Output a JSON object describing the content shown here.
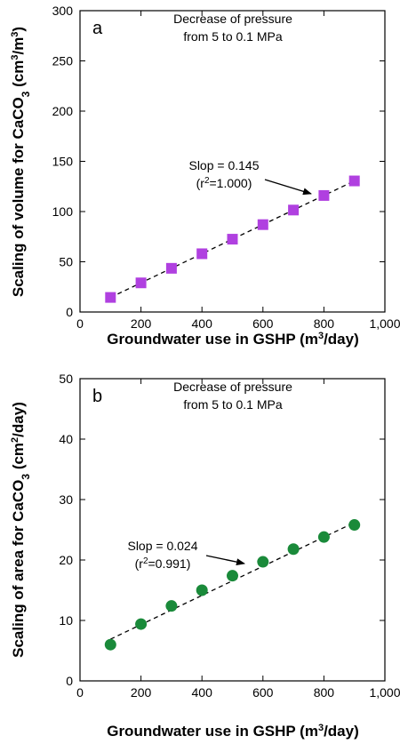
{
  "chart_data": [
    {
      "type": "scatter",
      "panel_label": "a",
      "note_line1": "Decrease of pressure",
      "note_line2": "from 5 to 0.1 MPa",
      "ylabel_main": "Scaling of volume for CaCO",
      "ylabel_sub": "3",
      "ylabel_unit_open": " (cm",
      "ylabel_sup1": "3",
      "ylabel_mid": "/m",
      "ylabel_sup2": "3",
      "ylabel_close": ")",
      "xlabel_main": "Groundwater use in GSHP (m",
      "xlabel_sup": "3",
      "xlabel_close": "/day)",
      "xlim": [
        0,
        1000
      ],
      "ylim": [
        0,
        300
      ],
      "xticks": [
        0,
        200,
        400,
        600,
        800,
        1000
      ],
      "xtick_labels": [
        "0",
        "200",
        "400",
        "600",
        "800",
        "1,000"
      ],
      "yticks": [
        0,
        50,
        100,
        150,
        200,
        250,
        300
      ],
      "ytick_labels": [
        "0",
        "50",
        "100",
        "150",
        "200",
        "250",
        "300"
      ],
      "marker": "square",
      "color": "#b040e0",
      "x": [
        100,
        200,
        300,
        400,
        500,
        600,
        700,
        800,
        900
      ],
      "y": [
        14.5,
        29,
        43.5,
        58,
        72.5,
        87,
        101.5,
        116,
        130.5
      ],
      "fit": {
        "x": [
          100,
          900
        ],
        "y": [
          14.5,
          130.5
        ]
      },
      "annotation": {
        "line1": "Slop = 0.145",
        "line2_open": "(r",
        "line2_sup": "2",
        "line2_close": "=1.000)"
      }
    },
    {
      "type": "scatter",
      "panel_label": "b",
      "note_line1": "Decrease of pressure",
      "note_line2": "from 5 to 0.1 MPa",
      "ylabel_main": "Scaling of area for CaCO",
      "ylabel_sub": "3",
      "ylabel_unit_open": " (cm",
      "ylabel_sup1": "2",
      "ylabel_close": "/day)",
      "xlabel_main": "Groundwater use in GSHP (m",
      "xlabel_sup": "3",
      "xlabel_close": "/day)",
      "xlim": [
        0,
        1000
      ],
      "ylim": [
        0,
        50
      ],
      "xticks": [
        0,
        200,
        400,
        600,
        800,
        1000
      ],
      "xtick_labels": [
        "0",
        "200",
        "400",
        "600",
        "800",
        "1,000"
      ],
      "yticks": [
        0,
        10,
        20,
        30,
        40,
        50
      ],
      "ytick_labels": [
        "0",
        "10",
        "20",
        "30",
        "40",
        "50"
      ],
      "marker": "circle",
      "color": "#1a8a3a",
      "x": [
        100,
        200,
        300,
        400,
        500,
        600,
        700,
        800,
        900
      ],
      "y": [
        6.0,
        9.4,
        12.4,
        15.0,
        17.4,
        19.7,
        21.8,
        23.8,
        25.8
      ],
      "fit": {
        "x": [
          100,
          900
        ],
        "y": [
          6.9,
          26.2
        ]
      },
      "annotation": {
        "line1": "Slop = 0.024",
        "line2_open": "(r",
        "line2_sup": "2",
        "line2_close": "=0.991)"
      }
    }
  ]
}
